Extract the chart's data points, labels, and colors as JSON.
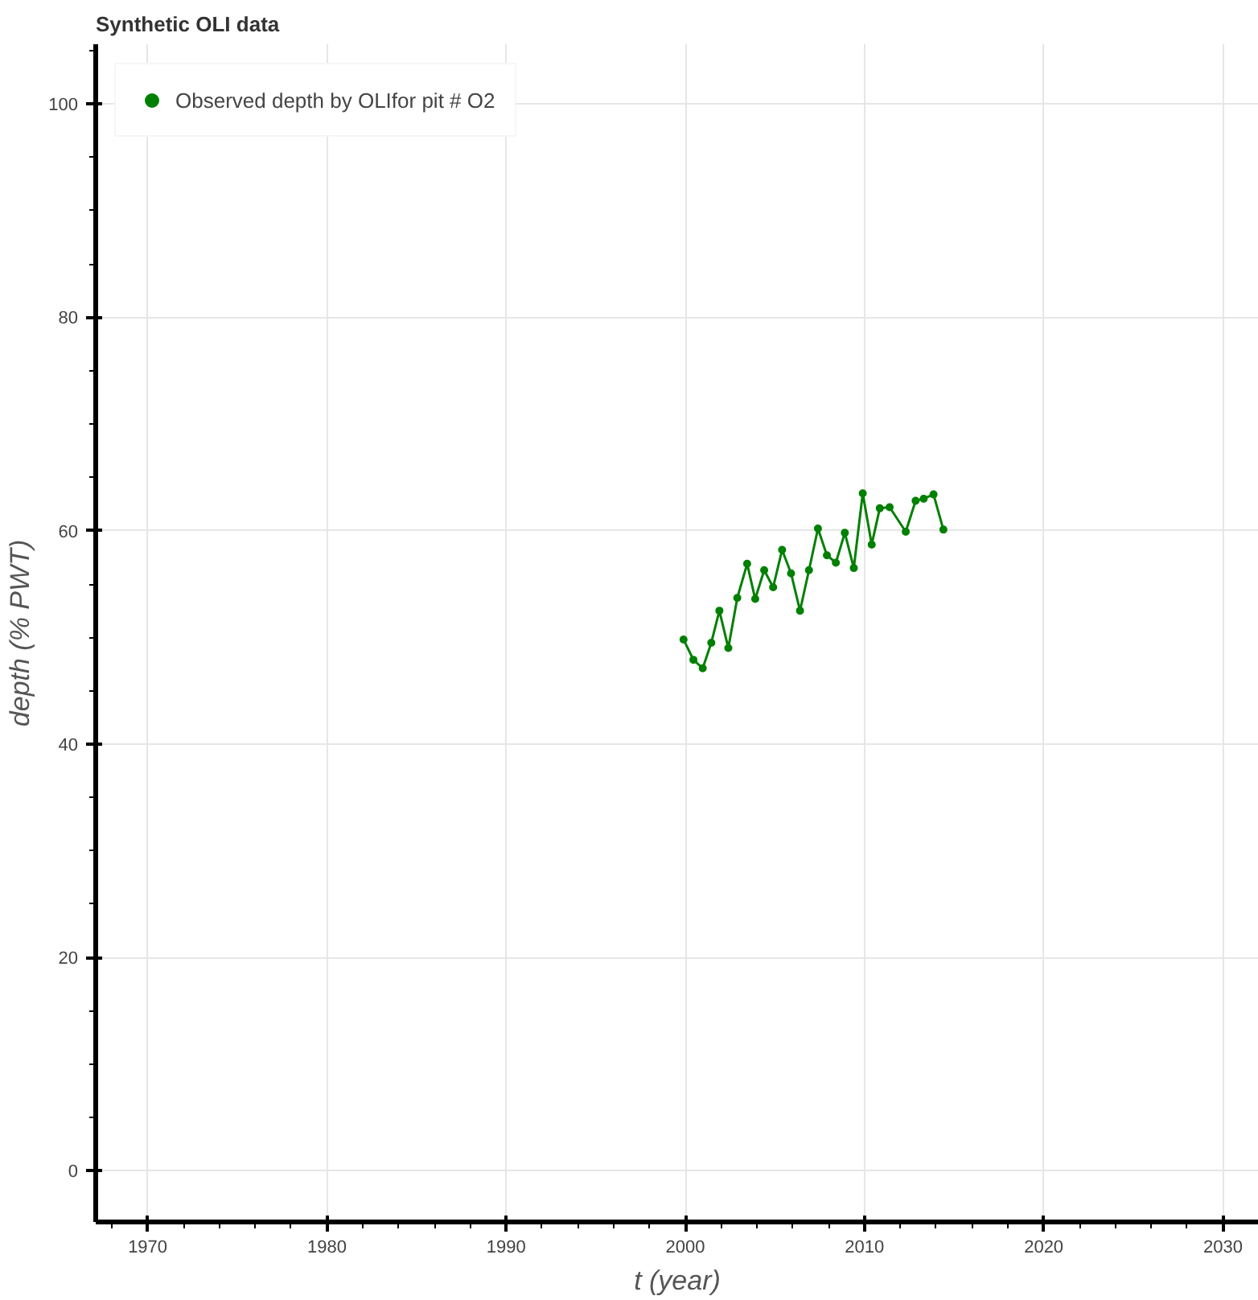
{
  "chart_data": {
    "type": "line",
    "title": "Synthetic OLI data",
    "xlabel": "t (year)",
    "ylabel": "depth (% PWT)",
    "x": [
      1999.9,
      2000.45,
      2000.97,
      2001.45,
      2001.9,
      2002.4,
      2002.9,
      2003.45,
      2003.9,
      2004.4,
      2004.9,
      2005.4,
      2005.9,
      2006.4,
      2006.9,
      2007.4,
      2007.9,
      2008.4,
      2008.9,
      2009.4,
      2009.9,
      2010.4,
      2010.85,
      2011.4,
      2012.3,
      2012.85,
      2013.3,
      2013.85,
      2014.4
    ],
    "series": [
      {
        "name": "Observed depth by OLIfor pit # O2",
        "color": "#008000",
        "values": [
          49.8,
          47.9,
          47.1,
          49.5,
          52.5,
          49.0,
          53.7,
          56.9,
          53.6,
          56.3,
          54.7,
          58.2,
          56.0,
          52.5,
          56.3,
          60.2,
          57.7,
          57.0,
          59.8,
          56.5,
          63.5,
          58.7,
          62.1,
          62.2,
          59.9,
          62.8,
          63.0,
          63.4,
          60.1
        ]
      }
    ],
    "xlim": [
      1967.1,
      2032
    ],
    "xticks": [
      1970,
      1980,
      1990,
      2000,
      2010,
      2020,
      2030
    ],
    "ylim": [
      -4.8,
      105.6
    ],
    "yticks": [
      0,
      20,
      40,
      60,
      80,
      100
    ],
    "grid": true,
    "legend": "top left",
    "marker": "circle",
    "line_style": "solid"
  }
}
